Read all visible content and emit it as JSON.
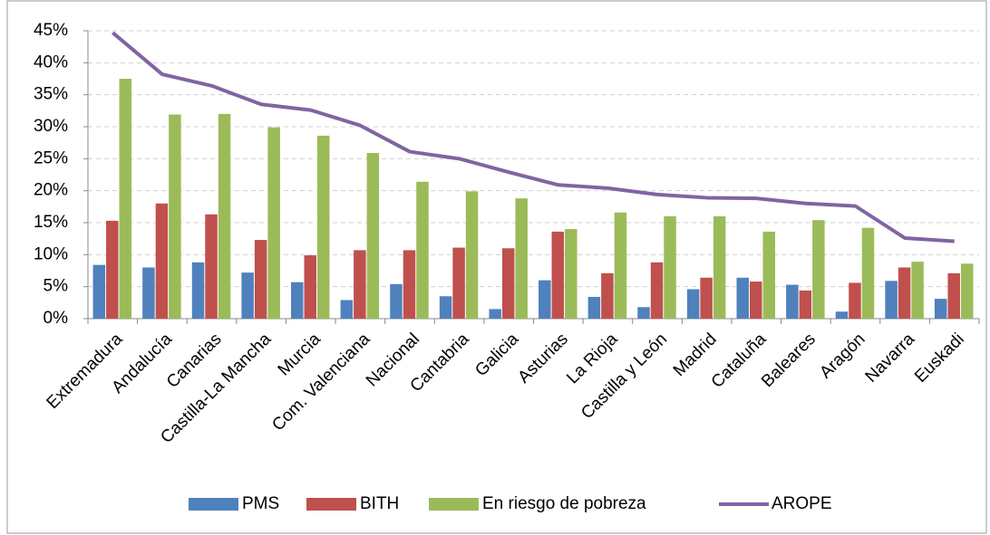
{
  "chart_data": {
    "type": "bar_line",
    "categories": [
      "Extremadura",
      "Andalucía",
      "Canarias",
      "Castilla-La Mancha",
      "Murcia",
      "Com. Valenciana",
      "Nacional",
      "Cantabria",
      "Galicia",
      "Asturias",
      "La Rioja",
      "Castilla y León",
      "Madrid",
      "Cataluña",
      "Baleares",
      "Aragón",
      "Navarra",
      "Euskadi"
    ],
    "series": [
      {
        "name": "PMS",
        "color": "#4f81bd",
        "type": "bar",
        "values": [
          8.4,
          8.0,
          8.8,
          7.2,
          5.7,
          2.9,
          5.4,
          3.5,
          1.5,
          6.0,
          3.4,
          1.8,
          4.6,
          6.4,
          5.3,
          1.1,
          5.9,
          3.1
        ]
      },
      {
        "name": "BITH",
        "color": "#c0504d",
        "type": "bar",
        "values": [
          15.3,
          18.0,
          16.3,
          12.3,
          9.9,
          10.7,
          10.7,
          11.1,
          11.0,
          13.6,
          7.1,
          8.8,
          6.4,
          5.8,
          4.4,
          5.6,
          8.0,
          7.1
        ]
      },
      {
        "name": "En riesgo de pobreza",
        "color": "#9bbb59",
        "type": "bar",
        "values": [
          37.5,
          31.9,
          32.0,
          29.9,
          28.6,
          25.9,
          21.4,
          19.9,
          18.8,
          14.0,
          16.6,
          16.0,
          16.0,
          13.6,
          15.4,
          14.2,
          8.9,
          8.6
        ]
      },
      {
        "name": "AROPE",
        "color": "#8064a2",
        "type": "line",
        "values": [
          44.7,
          38.2,
          36.4,
          33.5,
          32.6,
          30.2,
          26.1,
          25.0,
          22.9,
          20.9,
          20.4,
          19.4,
          18.9,
          18.8,
          18.0,
          17.6,
          12.6,
          12.1
        ]
      }
    ],
    "ylim": [
      0,
      45
    ],
    "yticks": [
      {
        "value": 0,
        "label": "0%"
      },
      {
        "value": 5,
        "label": "5%"
      },
      {
        "value": 10,
        "label": "10%"
      },
      {
        "value": 15,
        "label": "15%"
      },
      {
        "value": 20,
        "label": "20%"
      },
      {
        "value": 25,
        "label": "25%"
      },
      {
        "value": 30,
        "label": "30%"
      },
      {
        "value": 35,
        "label": "35%"
      },
      {
        "value": 40,
        "label": "40%"
      },
      {
        "value": 45,
        "label": "45%"
      }
    ],
    "grid": true,
    "legend": "bottom"
  }
}
